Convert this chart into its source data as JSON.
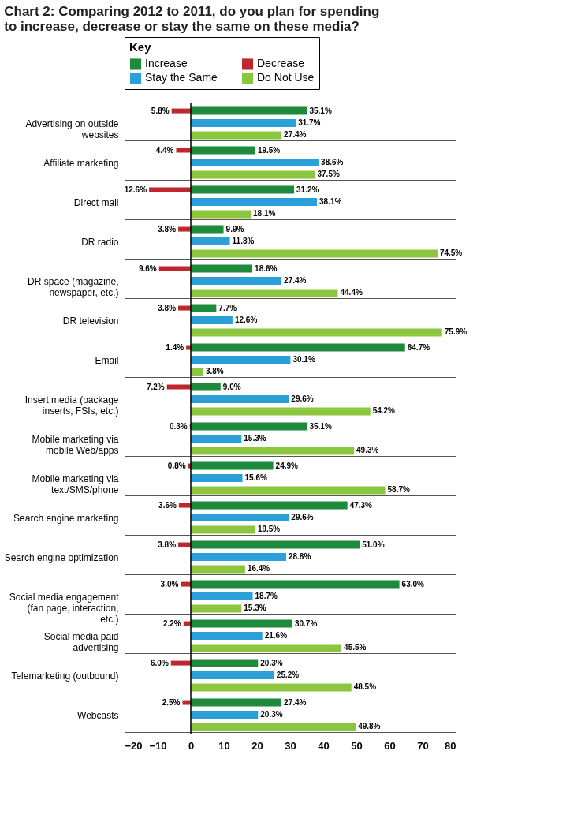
{
  "chart_data": {
    "type": "bar",
    "orientation": "horizontal",
    "title": "Chart 2: Comparing 2012 to 2011, do you plan for spending to increase, decrease or stay the same on these media?",
    "legend_title": "Key",
    "legend": "top",
    "categories": [
      "Advertising on outside websites",
      "Affiliate marketing",
      "Direct mail",
      "DR radio",
      "DR space (magazine, newspaper, etc.)",
      "DR television",
      "Email",
      "Insert media (package inserts, FSIs, etc.)",
      "Mobile marketing via mobile Web/apps",
      "Mobile marketing via text/SMS/phone",
      "Search engine marketing",
      "Search engine optimization",
      "Social media engagement (fan page, interaction, etc.)",
      "Social media paid advertising",
      "Telemarketing (outbound)",
      "Webcasts"
    ],
    "series": [
      {
        "name": "Increase",
        "color": "#1e8a3c",
        "values": [
          35.1,
          19.5,
          31.2,
          9.9,
          18.6,
          7.7,
          64.7,
          9.0,
          35.1,
          24.9,
          47.3,
          51.0,
          63.0,
          30.7,
          20.3,
          27.4
        ],
        "value_labels": [
          "35.1%",
          "19.5%",
          "31.2%",
          "9.9%",
          "18.6%",
          "7.7%",
          "64.7%",
          "9.0%",
          "35.1%",
          "24.9%",
          "47.3%",
          "51.0%",
          "63.0%",
          "30.7%",
          "20.3%",
          "27.4%"
        ]
      },
      {
        "name": "Decrease",
        "color": "#c0272d",
        "values": [
          5.8,
          4.4,
          12.6,
          3.8,
          9.6,
          3.8,
          1.4,
          7.2,
          0.3,
          0.8,
          3.6,
          3.8,
          3.0,
          2.2,
          6.0,
          2.5
        ],
        "base": [
          -5.8,
          -4.4,
          -12.6,
          -3.8,
          -9.6,
          -3.8,
          -1.4,
          -7.2,
          -0.3,
          -0.8,
          -3.6,
          -3.8,
          -3.0,
          -2.2,
          -6.0,
          -2.5
        ],
        "value_labels": [
          "5.8%",
          "4.4%",
          "12.6%",
          "3.8%",
          "9.6%",
          "3.8%",
          "1.4%",
          "7.2%",
          "0.3%",
          "0.8%",
          "3.6%",
          "3.8%",
          "3.0%",
          "2.2%",
          "6.0%",
          "2.5%"
        ]
      },
      {
        "name": "Stay the Same",
        "color": "#2a9fd8",
        "values": [
          31.7,
          38.6,
          38.1,
          11.8,
          27.4,
          12.6,
          30.1,
          29.6,
          15.3,
          15.6,
          29.6,
          28.8,
          18.7,
          21.6,
          25.2,
          20.3
        ],
        "value_labels": [
          "31.7%",
          "38.6%",
          "38.1%",
          "11.8%",
          "27.4%",
          "12.6%",
          "30.1%",
          "29.6%",
          "15.3%",
          "15.6%",
          "29.6%",
          "28.8%",
          "18.7%",
          "21.6%",
          "25.2%",
          "20.3%"
        ]
      },
      {
        "name": "Do Not Use",
        "color": "#8cc63f",
        "values": [
          27.4,
          37.5,
          18.1,
          74.5,
          44.4,
          75.9,
          3.8,
          54.2,
          49.3,
          58.7,
          19.5,
          16.4,
          15.3,
          45.5,
          48.5,
          49.8
        ],
        "value_labels": [
          "27.4%",
          "37.5%",
          "18.1%",
          "74.5%",
          "44.4%",
          "75.9%",
          "3.8%",
          "54.2%",
          "49.3%",
          "58.7%",
          "19.5%",
          "16.4%",
          "15.3%",
          "45.5%",
          "48.5%",
          "49.8%"
        ]
      }
    ],
    "xlim": [
      -20,
      80
    ],
    "xticks": [
      -20,
      -10,
      0,
      10,
      20,
      30,
      40,
      50,
      60,
      70,
      80
    ],
    "ref_lines": [
      {
        "axis": "x",
        "value": 0,
        "color": "#000000"
      }
    ],
    "grid": "y"
  }
}
